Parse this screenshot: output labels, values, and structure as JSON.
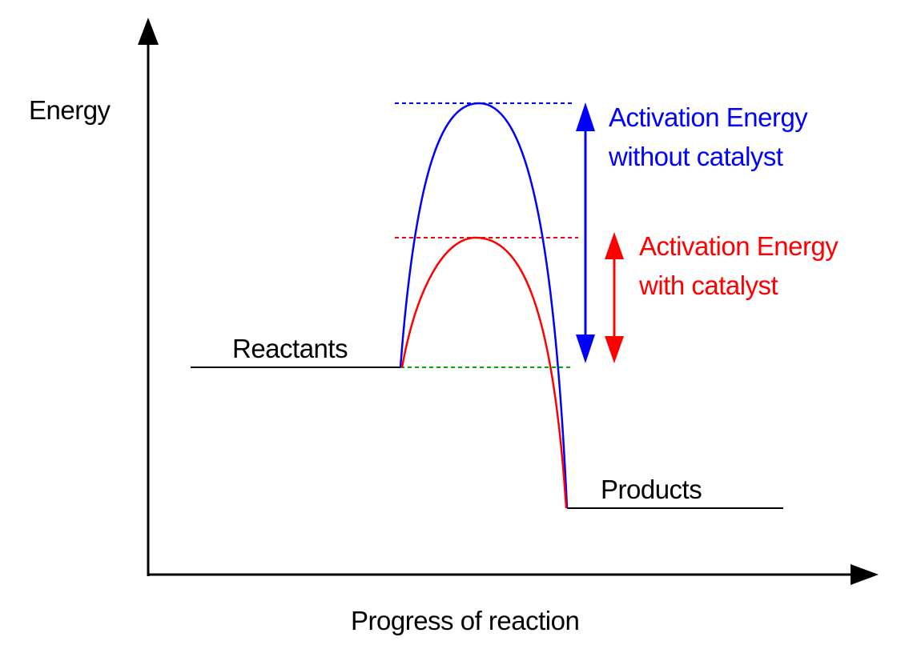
{
  "labels": {
    "y_axis": "Energy",
    "x_axis": "Progress of reaction",
    "reactants": "Reactants",
    "products": "Products",
    "without_catalyst_line1": "Activation Energy",
    "without_catalyst_line2": "without catalyst",
    "with_catalyst_line1": "Activation Energy",
    "with_catalyst_line2": "with catalyst"
  },
  "colors": {
    "axis": "#000000",
    "without_catalyst": "#0000ff",
    "with_catalyst": "#ff0000",
    "reactant_reference": "#00aa00"
  }
}
